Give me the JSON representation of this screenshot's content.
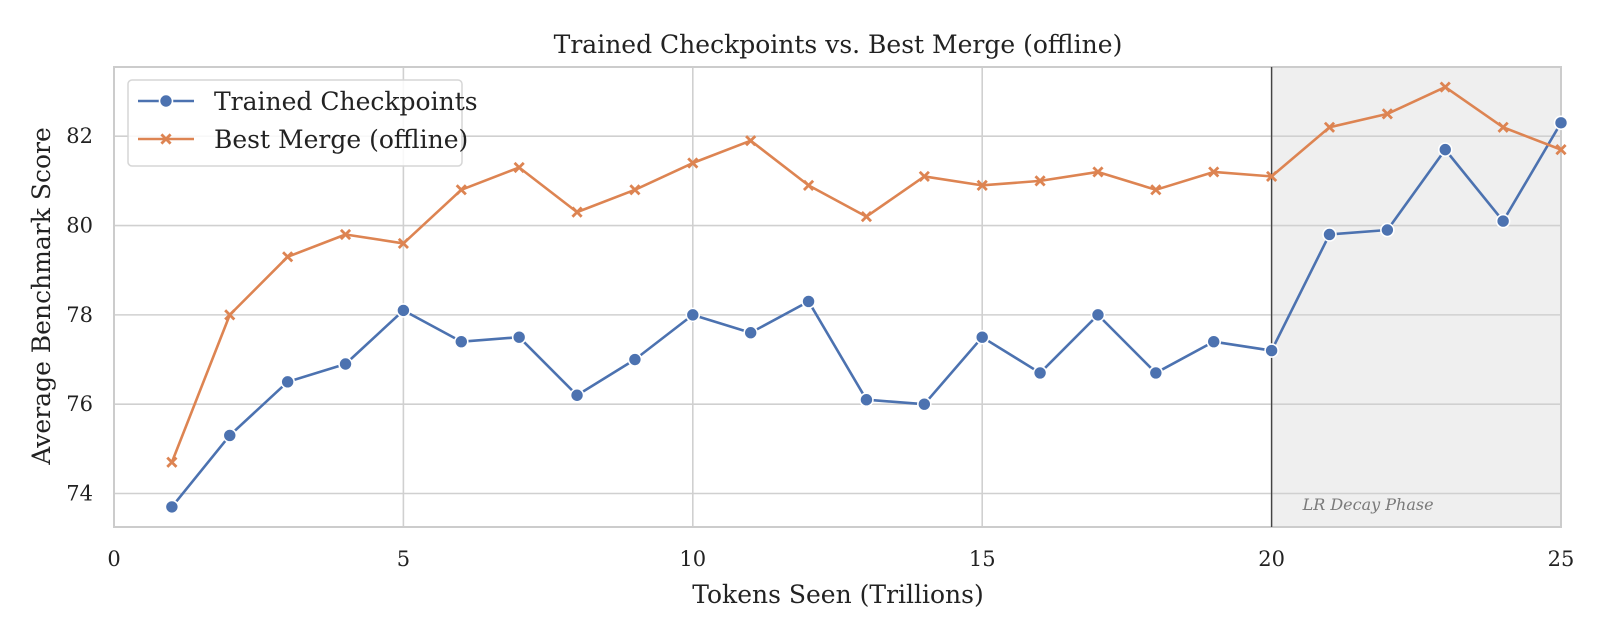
{
  "chart_data": {
    "type": "line",
    "title": "Trained Checkpoints vs. Best Merge (offline)",
    "xlabel": "Tokens Seen (Trillions)",
    "ylabel": "Average Benchmark Score",
    "xlim": [
      0,
      25
    ],
    "ylim": [
      73.25,
      83.55
    ],
    "xticks": [
      0,
      5,
      10,
      15,
      20,
      25
    ],
    "yticks": [
      74,
      76,
      78,
      80,
      82
    ],
    "grid": true,
    "legend_position": "top-left",
    "x": [
      1,
      2,
      3,
      4,
      5,
      6,
      7,
      8,
      9,
      10,
      11,
      12,
      13,
      14,
      15,
      16,
      17,
      18,
      19,
      20,
      21,
      22,
      23,
      24,
      25
    ],
    "series": [
      {
        "name": "Trained Checkpoints",
        "color": "#4c72b0",
        "marker": "circle",
        "values": [
          73.7,
          75.3,
          76.5,
          76.9,
          78.1,
          77.4,
          77.5,
          76.2,
          77.0,
          78.0,
          77.6,
          78.3,
          76.1,
          76.0,
          77.5,
          76.7,
          78.0,
          76.7,
          77.4,
          77.2,
          79.8,
          79.9,
          81.7,
          80.1,
          82.3
        ]
      },
      {
        "name": "Best Merge (offline)",
        "color": "#dd8452",
        "marker": "x",
        "values": [
          74.7,
          78.0,
          79.3,
          79.8,
          79.6,
          80.8,
          81.3,
          80.3,
          80.8,
          81.4,
          81.9,
          80.9,
          80.2,
          81.1,
          80.9,
          81.0,
          81.2,
          80.8,
          81.2,
          81.1,
          82.2,
          82.5,
          83.1,
          82.2,
          81.7
        ]
      }
    ],
    "shaded_region": {
      "x_start": 20,
      "x_end": 25,
      "label": "LR Decay Phase",
      "color": "#efefef"
    },
    "vline_x": 20
  }
}
